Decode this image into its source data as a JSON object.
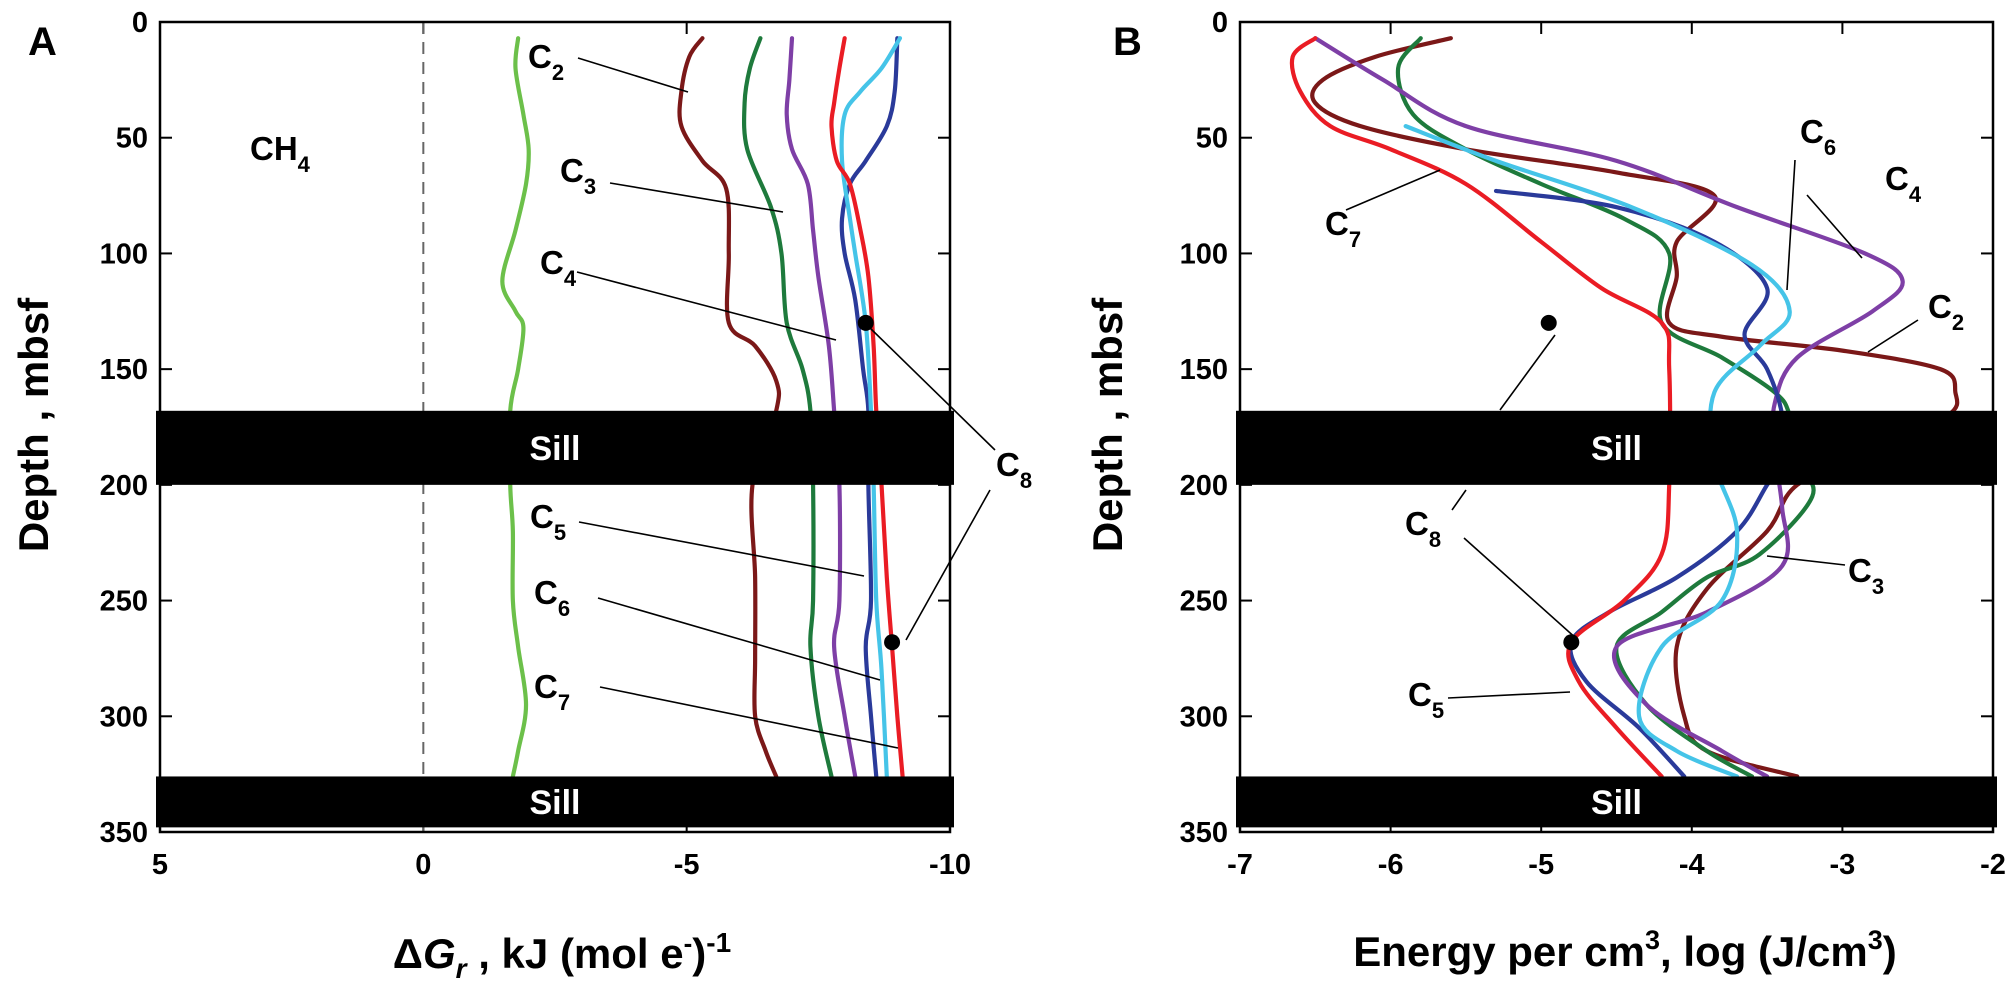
{
  "chart_data": [
    {
      "panel": "A",
      "type": "line",
      "xlabel": {
        "pre": "Δ",
        "var": "G",
        "sub": "r",
        "mid": " , kJ (mol e",
        "sup1": "-",
        "close": ")",
        "sup2": "-1"
      },
      "ylabel": "Depth , mbsf",
      "xlim": [
        5,
        -10
      ],
      "ylim": [
        0,
        350
      ],
      "xticks": [
        "5",
        "0",
        "-5",
        "-10"
      ],
      "yticks": [
        "0",
        "50",
        "100",
        "150",
        "200",
        "250",
        "300",
        "350"
      ],
      "sills": [
        {
          "label": "Sill",
          "from": 168,
          "to": 200
        },
        {
          "label": "Sill",
          "from": 326,
          "to": 348
        }
      ],
      "zero_line": 0,
      "series": [
        {
          "name": "CH4",
          "color": "#6cc04a",
          "points": [
            [
              -1.8,
              7
            ],
            [
              -1.75,
              20
            ],
            [
              -1.9,
              40
            ],
            [
              -2.0,
              55
            ],
            [
              -1.95,
              70
            ],
            [
              -1.75,
              90
            ],
            [
              -1.5,
              112
            ],
            [
              -1.75,
              125
            ],
            [
              -1.9,
              132
            ],
            [
              -1.8,
              150
            ],
            [
              -1.65,
              168
            ],
            [
              -1.65,
              200
            ],
            [
              -1.7,
              220
            ],
            [
              -1.7,
              250
            ],
            [
              -1.8,
              270
            ],
            [
              -1.95,
              295
            ],
            [
              -1.8,
              315
            ],
            [
              -1.7,
              326
            ]
          ]
        },
        {
          "name": "C2",
          "color": "#7b1818",
          "points": [
            [
              -5.3,
              7
            ],
            [
              -5.05,
              15
            ],
            [
              -4.9,
              30
            ],
            [
              -4.9,
              45
            ],
            [
              -5.3,
              60
            ],
            [
              -5.75,
              72
            ],
            [
              -5.8,
              100
            ],
            [
              -5.8,
              130
            ],
            [
              -6.3,
              140
            ],
            [
              -6.7,
              155
            ],
            [
              -6.7,
              168
            ],
            [
              -6.25,
              200
            ],
            [
              -6.3,
              240
            ],
            [
              -6.3,
              275
            ],
            [
              -6.3,
              300
            ],
            [
              -6.5,
              315
            ],
            [
              -6.7,
              326
            ]
          ]
        },
        {
          "name": "C3",
          "color": "#1e7a3c",
          "points": [
            [
              -6.4,
              7
            ],
            [
              -6.2,
              20
            ],
            [
              -6.1,
              35
            ],
            [
              -6.15,
              55
            ],
            [
              -6.6,
              80
            ],
            [
              -6.8,
              100
            ],
            [
              -6.9,
              130
            ],
            [
              -7.2,
              150
            ],
            [
              -7.35,
              168
            ],
            [
              -7.4,
              200
            ],
            [
              -7.4,
              250
            ],
            [
              -7.35,
              270
            ],
            [
              -7.5,
              300
            ],
            [
              -7.75,
              326
            ]
          ]
        },
        {
          "name": "C4",
          "color": "#7e3fa6",
          "points": [
            [
              -7.0,
              7
            ],
            [
              -6.95,
              25
            ],
            [
              -6.9,
              40
            ],
            [
              -7.0,
              55
            ],
            [
              -7.3,
              70
            ],
            [
              -7.4,
              90
            ],
            [
              -7.5,
              110
            ],
            [
              -7.7,
              140
            ],
            [
              -7.8,
              168
            ],
            [
              -7.9,
              200
            ],
            [
              -7.9,
              250
            ],
            [
              -7.8,
              270
            ],
            [
              -8.0,
              300
            ],
            [
              -8.2,
              326
            ]
          ]
        },
        {
          "name": "C5",
          "color": "#2a3a9a",
          "points": [
            [
              -9.0,
              7
            ],
            [
              -8.95,
              30
            ],
            [
              -8.8,
              45
            ],
            [
              -8.4,
              60
            ],
            [
              -8.1,
              70
            ],
            [
              -7.95,
              85
            ],
            [
              -8.0,
              100
            ],
            [
              -8.2,
              120
            ],
            [
              -8.35,
              150
            ],
            [
              -8.45,
              168
            ],
            [
              -8.45,
              200
            ],
            [
              -8.5,
              250
            ],
            [
              -8.4,
              270
            ],
            [
              -8.5,
              300
            ],
            [
              -8.6,
              326
            ]
          ]
        },
        {
          "name": "C6",
          "color": "#45c4e8",
          "points": [
            [
              -9.05,
              7
            ],
            [
              -8.7,
              20
            ],
            [
              -8.3,
              30
            ],
            [
              -8.0,
              40
            ],
            [
              -7.95,
              60
            ],
            [
              -8.1,
              85
            ],
            [
              -8.2,
              100
            ],
            [
              -8.4,
              130
            ],
            [
              -8.5,
              168
            ],
            [
              -8.55,
              200
            ],
            [
              -8.6,
              250
            ],
            [
              -8.7,
              280
            ],
            [
              -8.8,
              326
            ]
          ]
        },
        {
          "name": "C7",
          "color": "#ea1c24",
          "points": [
            [
              -8.0,
              7
            ],
            [
              -7.9,
              20
            ],
            [
              -7.8,
              35
            ],
            [
              -7.75,
              45
            ],
            [
              -7.85,
              60
            ],
            [
              -8.1,
              70
            ],
            [
              -8.3,
              90
            ],
            [
              -8.45,
              110
            ],
            [
              -8.55,
              140
            ],
            [
              -8.6,
              168
            ],
            [
              -8.7,
              200
            ],
            [
              -8.8,
              240
            ],
            [
              -8.9,
              270
            ],
            [
              -9.0,
              300
            ],
            [
              -9.1,
              326
            ]
          ]
        }
      ],
      "markers": [
        [
          -8.4,
          130
        ],
        [
          -8.9,
          268
        ]
      ],
      "annotations": [
        {
          "base": "CH",
          "sub": "4"
        },
        {
          "base": "C",
          "sub": "2"
        },
        {
          "base": "C",
          "sub": "3"
        },
        {
          "base": "C",
          "sub": "4"
        },
        {
          "base": "C",
          "sub": "5"
        },
        {
          "base": "C",
          "sub": "6"
        },
        {
          "base": "C",
          "sub": "7"
        },
        {
          "base": "C",
          "sub": "8"
        }
      ]
    },
    {
      "panel": "B",
      "type": "line",
      "xlabel": {
        "a": "Energy per cm",
        "sup1": "3",
        "b": ", log (J/cm",
        "sup2": "3",
        "c": ")"
      },
      "ylabel": "Depth , mbsf",
      "xlim": [
        -7,
        -2
      ],
      "ylim": [
        0,
        350
      ],
      "xticks": [
        "-7",
        "-6",
        "-5",
        "-4",
        "-3",
        "-2"
      ],
      "yticks": [
        "0",
        "50",
        "100",
        "150",
        "200",
        "250",
        "300",
        "350"
      ],
      "sills": [
        {
          "label": "Sill",
          "from": 168,
          "to": 200
        },
        {
          "label": "Sill",
          "from": 326,
          "to": 348
        }
      ],
      "series": [
        {
          "name": "C2",
          "color": "#7b1818",
          "points": [
            [
              -5.6,
              7
            ],
            [
              -6.1,
              15
            ],
            [
              -6.45,
              25
            ],
            [
              -6.5,
              35
            ],
            [
              -6.2,
              45
            ],
            [
              -5.5,
              55
            ],
            [
              -4.5,
              65
            ],
            [
              -3.85,
              75
            ],
            [
              -4.1,
              95
            ],
            [
              -4.1,
              110
            ],
            [
              -4.15,
              130
            ],
            [
              -3.8,
              136
            ],
            [
              -3.0,
              142
            ],
            [
              -2.35,
              150
            ],
            [
              -2.25,
              160
            ],
            [
              -2.3,
              170
            ],
            [
              -2.8,
              185
            ],
            [
              -3.3,
              200
            ],
            [
              -3.5,
              220
            ],
            [
              -3.9,
              245
            ],
            [
              -4.1,
              270
            ],
            [
              -4.05,
              300
            ],
            [
              -3.9,
              315
            ],
            [
              -3.3,
              326
            ]
          ]
        },
        {
          "name": "C3",
          "color": "#1e7a3c",
          "points": [
            [
              -5.8,
              7
            ],
            [
              -5.95,
              20
            ],
            [
              -5.85,
              40
            ],
            [
              -5.5,
              55
            ],
            [
              -5.0,
              70
            ],
            [
              -4.45,
              85
            ],
            [
              -4.15,
              100
            ],
            [
              -4.2,
              130
            ],
            [
              -3.8,
              145
            ],
            [
              -3.45,
              160
            ],
            [
              -3.35,
              170
            ],
            [
              -3.3,
              190
            ],
            [
              -3.2,
              205
            ],
            [
              -3.55,
              230
            ],
            [
              -3.9,
              240
            ],
            [
              -4.2,
              255
            ],
            [
              -4.5,
              270
            ],
            [
              -4.3,
              295
            ],
            [
              -3.9,
              315
            ],
            [
              -3.6,
              326
            ]
          ]
        },
        {
          "name": "C4",
          "color": "#7e3fa6",
          "points": [
            [
              -6.5,
              7
            ],
            [
              -6.05,
              25
            ],
            [
              -5.5,
              45
            ],
            [
              -4.5,
              60
            ],
            [
              -3.7,
              80
            ],
            [
              -2.85,
              100
            ],
            [
              -2.6,
              112
            ],
            [
              -2.8,
              125
            ],
            [
              -3.3,
              145
            ],
            [
              -3.45,
              165
            ],
            [
              -3.45,
              185
            ],
            [
              -3.4,
              210
            ],
            [
              -3.4,
              235
            ],
            [
              -3.9,
              255
            ],
            [
              -4.5,
              270
            ],
            [
              -4.3,
              295
            ],
            [
              -3.8,
              315
            ],
            [
              -3.5,
              326
            ]
          ]
        },
        {
          "name": "C5",
          "color": "#2a3a9a",
          "points": [
            [
              -5.3,
              73
            ],
            [
              -4.5,
              80
            ],
            [
              -3.85,
              95
            ],
            [
              -3.5,
              115
            ],
            [
              -3.65,
              135
            ],
            [
              -3.5,
              150
            ],
            [
              -3.4,
              170
            ],
            [
              -3.4,
              190
            ],
            [
              -3.5,
              200
            ],
            [
              -3.7,
              220
            ],
            [
              -4.1,
              240
            ],
            [
              -4.55,
              255
            ],
            [
              -4.8,
              268
            ],
            [
              -4.7,
              285
            ],
            [
              -4.35,
              305
            ],
            [
              -4.05,
              326
            ]
          ]
        },
        {
          "name": "C6",
          "color": "#45c4e8",
          "points": [
            [
              -5.9,
              45
            ],
            [
              -5.3,
              60
            ],
            [
              -4.4,
              80
            ],
            [
              -3.6,
              105
            ],
            [
              -3.35,
              125
            ],
            [
              -3.55,
              140
            ],
            [
              -3.85,
              160
            ],
            [
              -3.85,
              190
            ],
            [
              -3.7,
              220
            ],
            [
              -3.8,
              250
            ],
            [
              -4.2,
              270
            ],
            [
              -4.35,
              300
            ],
            [
              -4.1,
              315
            ],
            [
              -3.7,
              326
            ]
          ]
        },
        {
          "name": "C7",
          "color": "#ea1c24",
          "points": [
            [
              -6.5,
              7
            ],
            [
              -6.65,
              15
            ],
            [
              -6.6,
              30
            ],
            [
              -6.4,
              45
            ],
            [
              -6.0,
              55
            ],
            [
              -5.5,
              70
            ],
            [
              -5.0,
              95
            ],
            [
              -4.6,
              115
            ],
            [
              -4.2,
              130
            ],
            [
              -4.15,
              150
            ],
            [
              -4.15,
              200
            ],
            [
              -4.2,
              230
            ],
            [
              -4.45,
              250
            ],
            [
              -4.8,
              268
            ],
            [
              -4.75,
              285
            ],
            [
              -4.5,
              305
            ],
            [
              -4.2,
              326
            ]
          ]
        }
      ],
      "markers": [
        [
          -4.95,
          130
        ],
        [
          -4.8,
          268
        ]
      ],
      "annotations": [
        {
          "base": "C",
          "sub": "2"
        },
        {
          "base": "C",
          "sub": "3"
        },
        {
          "base": "C",
          "sub": "4"
        },
        {
          "base": "C",
          "sub": "5"
        },
        {
          "base": "C",
          "sub": "6"
        },
        {
          "base": "C",
          "sub": "7"
        },
        {
          "base": "C",
          "sub": "8"
        }
      ]
    }
  ]
}
